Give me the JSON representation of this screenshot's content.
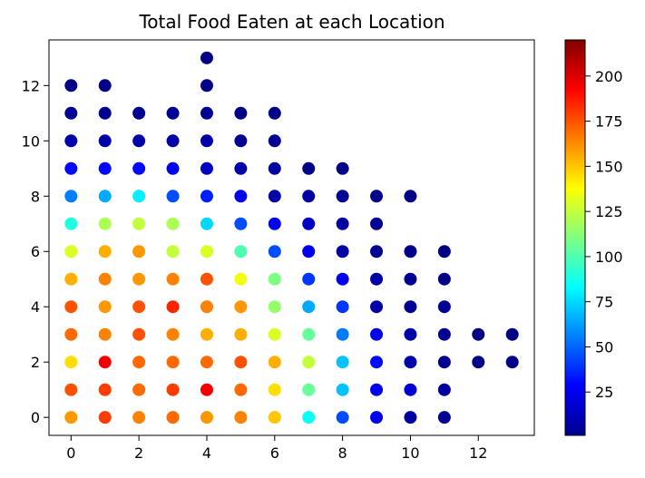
{
  "chart_data": {
    "type": "scatter",
    "title": "Total Food Eaten at each Location",
    "xlabel": "",
    "ylabel": "",
    "xlim": [
      -0.65,
      13.65
    ],
    "ylim": [
      -0.65,
      13.65
    ],
    "xticks": [
      0,
      2,
      4,
      6,
      8,
      10,
      12
    ],
    "yticks": [
      0,
      2,
      4,
      6,
      8,
      10,
      12
    ],
    "grid": false,
    "colorbar": {
      "colormap": "jet",
      "range": [
        1,
        220
      ],
      "ticks": [
        25,
        50,
        75,
        100,
        125,
        150,
        175,
        200
      ]
    },
    "points": [
      {
        "x": 0,
        "y": 0,
        "v": 160
      },
      {
        "x": 0,
        "y": 1,
        "v": 175
      },
      {
        "x": 0,
        "y": 2,
        "v": 145
      },
      {
        "x": 0,
        "y": 3,
        "v": 170
      },
      {
        "x": 0,
        "y": 4,
        "v": 175
      },
      {
        "x": 0,
        "y": 5,
        "v": 155
      },
      {
        "x": 0,
        "y": 6,
        "v": 130
      },
      {
        "x": 0,
        "y": 7,
        "v": 90
      },
      {
        "x": 0,
        "y": 8,
        "v": 55
      },
      {
        "x": 0,
        "y": 9,
        "v": 30
      },
      {
        "x": 0,
        "y": 10,
        "v": 10
      },
      {
        "x": 0,
        "y": 11,
        "v": 5
      },
      {
        "x": 0,
        "y": 12,
        "v": 3
      },
      {
        "x": 1,
        "y": 0,
        "v": 180
      },
      {
        "x": 1,
        "y": 1,
        "v": 180
      },
      {
        "x": 1,
        "y": 2,
        "v": 195
      },
      {
        "x": 1,
        "y": 3,
        "v": 165
      },
      {
        "x": 1,
        "y": 4,
        "v": 160
      },
      {
        "x": 1,
        "y": 5,
        "v": 165
      },
      {
        "x": 1,
        "y": 6,
        "v": 155
      },
      {
        "x": 1,
        "y": 7,
        "v": 120
      },
      {
        "x": 1,
        "y": 8,
        "v": 65
      },
      {
        "x": 1,
        "y": 9,
        "v": 30
      },
      {
        "x": 1,
        "y": 10,
        "v": 10
      },
      {
        "x": 1,
        "y": 11,
        "v": 5
      },
      {
        "x": 1,
        "y": 12,
        "v": 3
      },
      {
        "x": 2,
        "y": 0,
        "v": 165
      },
      {
        "x": 2,
        "y": 1,
        "v": 170
      },
      {
        "x": 2,
        "y": 2,
        "v": 170
      },
      {
        "x": 2,
        "y": 3,
        "v": 175
      },
      {
        "x": 2,
        "y": 4,
        "v": 175
      },
      {
        "x": 2,
        "y": 5,
        "v": 160
      },
      {
        "x": 2,
        "y": 6,
        "v": 160
      },
      {
        "x": 2,
        "y": 7,
        "v": 125
      },
      {
        "x": 2,
        "y": 8,
        "v": 80
      },
      {
        "x": 2,
        "y": 9,
        "v": 30
      },
      {
        "x": 2,
        "y": 10,
        "v": 10
      },
      {
        "x": 2,
        "y": 11,
        "v": 5
      },
      {
        "x": 3,
        "y": 0,
        "v": 170
      },
      {
        "x": 3,
        "y": 1,
        "v": 180
      },
      {
        "x": 3,
        "y": 2,
        "v": 170
      },
      {
        "x": 3,
        "y": 3,
        "v": 165
      },
      {
        "x": 3,
        "y": 4,
        "v": 185
      },
      {
        "x": 3,
        "y": 5,
        "v": 165
      },
      {
        "x": 3,
        "y": 6,
        "v": 125
      },
      {
        "x": 3,
        "y": 7,
        "v": 120
      },
      {
        "x": 3,
        "y": 8,
        "v": 45
      },
      {
        "x": 3,
        "y": 9,
        "v": 25
      },
      {
        "x": 3,
        "y": 10,
        "v": 10
      },
      {
        "x": 3,
        "y": 11,
        "v": 5
      },
      {
        "x": 4,
        "y": 0,
        "v": 160
      },
      {
        "x": 4,
        "y": 1,
        "v": 195
      },
      {
        "x": 4,
        "y": 2,
        "v": 170
      },
      {
        "x": 4,
        "y": 3,
        "v": 155
      },
      {
        "x": 4,
        "y": 4,
        "v": 165
      },
      {
        "x": 4,
        "y": 5,
        "v": 175
      },
      {
        "x": 4,
        "y": 6,
        "v": 130
      },
      {
        "x": 4,
        "y": 7,
        "v": 75
      },
      {
        "x": 4,
        "y": 8,
        "v": 35
      },
      {
        "x": 4,
        "y": 9,
        "v": 15
      },
      {
        "x": 4,
        "y": 10,
        "v": 10
      },
      {
        "x": 4,
        "y": 11,
        "v": 5
      },
      {
        "x": 4,
        "y": 12,
        "v": 3
      },
      {
        "x": 4,
        "y": 13,
        "v": 2
      },
      {
        "x": 5,
        "y": 0,
        "v": 165
      },
      {
        "x": 5,
        "y": 1,
        "v": 170
      },
      {
        "x": 5,
        "y": 2,
        "v": 175
      },
      {
        "x": 5,
        "y": 3,
        "v": 155
      },
      {
        "x": 5,
        "y": 4,
        "v": 160
      },
      {
        "x": 5,
        "y": 5,
        "v": 135
      },
      {
        "x": 5,
        "y": 6,
        "v": 100
      },
      {
        "x": 5,
        "y": 7,
        "v": 45
      },
      {
        "x": 5,
        "y": 8,
        "v": 25
      },
      {
        "x": 5,
        "y": 9,
        "v": 10
      },
      {
        "x": 5,
        "y": 10,
        "v": 5
      },
      {
        "x": 5,
        "y": 11,
        "v": 3
      },
      {
        "x": 6,
        "y": 0,
        "v": 150
      },
      {
        "x": 6,
        "y": 1,
        "v": 145
      },
      {
        "x": 6,
        "y": 2,
        "v": 155
      },
      {
        "x": 6,
        "y": 3,
        "v": 130
      },
      {
        "x": 6,
        "y": 4,
        "v": 115
      },
      {
        "x": 6,
        "y": 5,
        "v": 110
      },
      {
        "x": 6,
        "y": 6,
        "v": 45
      },
      {
        "x": 6,
        "y": 7,
        "v": 25
      },
      {
        "x": 6,
        "y": 8,
        "v": 10
      },
      {
        "x": 6,
        "y": 9,
        "v": 8
      },
      {
        "x": 6,
        "y": 10,
        "v": 5
      },
      {
        "x": 6,
        "y": 11,
        "v": 3
      },
      {
        "x": 7,
        "y": 0,
        "v": 85
      },
      {
        "x": 7,
        "y": 1,
        "v": 105
      },
      {
        "x": 7,
        "y": 2,
        "v": 125
      },
      {
        "x": 7,
        "y": 3,
        "v": 105
      },
      {
        "x": 7,
        "y": 4,
        "v": 65
      },
      {
        "x": 7,
        "y": 5,
        "v": 40
      },
      {
        "x": 7,
        "y": 6,
        "v": 25
      },
      {
        "x": 7,
        "y": 7,
        "v": 15
      },
      {
        "x": 7,
        "y": 8,
        "v": 8
      },
      {
        "x": 7,
        "y": 9,
        "v": 3
      },
      {
        "x": 8,
        "y": 0,
        "v": 45
      },
      {
        "x": 8,
        "y": 1,
        "v": 70
      },
      {
        "x": 8,
        "y": 2,
        "v": 70
      },
      {
        "x": 8,
        "y": 3,
        "v": 55
      },
      {
        "x": 8,
        "y": 4,
        "v": 40
      },
      {
        "x": 8,
        "y": 5,
        "v": 25
      },
      {
        "x": 8,
        "y": 6,
        "v": 10
      },
      {
        "x": 8,
        "y": 7,
        "v": 8
      },
      {
        "x": 8,
        "y": 8,
        "v": 5
      },
      {
        "x": 8,
        "y": 9,
        "v": 3
      },
      {
        "x": 9,
        "y": 0,
        "v": 25
      },
      {
        "x": 9,
        "y": 1,
        "v": 25
      },
      {
        "x": 9,
        "y": 2,
        "v": 30
      },
      {
        "x": 9,
        "y": 3,
        "v": 25
      },
      {
        "x": 9,
        "y": 4,
        "v": 10
      },
      {
        "x": 9,
        "y": 5,
        "v": 10
      },
      {
        "x": 9,
        "y": 6,
        "v": 5
      },
      {
        "x": 9,
        "y": 7,
        "v": 5
      },
      {
        "x": 9,
        "y": 8,
        "v": 3
      },
      {
        "x": 10,
        "y": 0,
        "v": 8
      },
      {
        "x": 10,
        "y": 1,
        "v": 20
      },
      {
        "x": 10,
        "y": 2,
        "v": 10
      },
      {
        "x": 10,
        "y": 3,
        "v": 10
      },
      {
        "x": 10,
        "y": 4,
        "v": 5
      },
      {
        "x": 10,
        "y": 5,
        "v": 5
      },
      {
        "x": 10,
        "y": 6,
        "v": 3
      },
      {
        "x": 10,
        "y": 8,
        "v": 2
      },
      {
        "x": 11,
        "y": 0,
        "v": 5
      },
      {
        "x": 11,
        "y": 1,
        "v": 8
      },
      {
        "x": 11,
        "y": 2,
        "v": 5
      },
      {
        "x": 11,
        "y": 3,
        "v": 5
      },
      {
        "x": 11,
        "y": 4,
        "v": 5
      },
      {
        "x": 11,
        "y": 5,
        "v": 3
      },
      {
        "x": 11,
        "y": 6,
        "v": 2
      },
      {
        "x": 12,
        "y": 2,
        "v": 3
      },
      {
        "x": 12,
        "y": 3,
        "v": 2
      },
      {
        "x": 13,
        "y": 2,
        "v": 3
      },
      {
        "x": 13,
        "y": 3,
        "v": 2
      }
    ]
  }
}
